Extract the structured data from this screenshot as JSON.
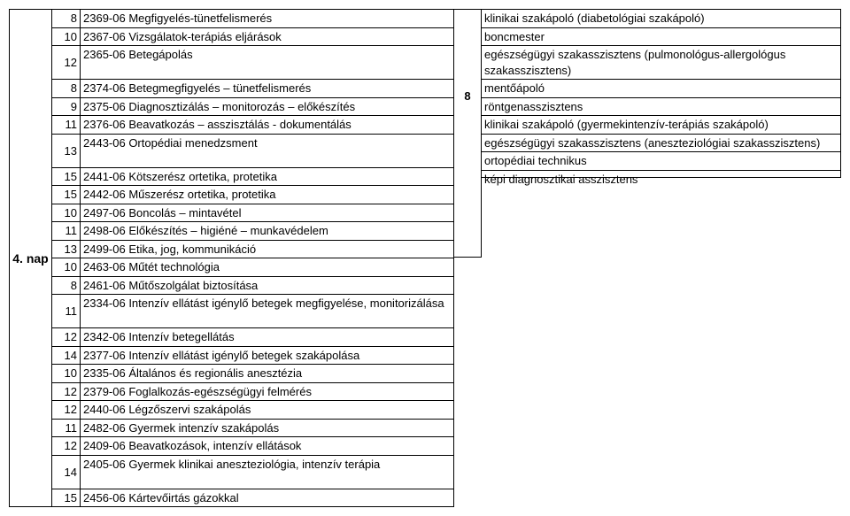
{
  "day_label": "4. nap",
  "mid_number": "8",
  "left_rows": [
    {
      "num": "8",
      "text": "2369-06 Megfigyelés-tünetfelismerés"
    },
    {
      "num": "10",
      "text": "2367-06 Vizsgálatok-terápiás eljárások"
    },
    {
      "num": "12",
      "text": "2365-06 Betegápolás"
    },
    {
      "num": "8",
      "text": "2374-06 Betegmegfigyelés – tünetfelismerés"
    },
    {
      "num": "9",
      "text": "2375-06 Diagnosztizálás – monitorozás – előkészítés"
    },
    {
      "num": "11",
      "text": "2376-06 Beavatkozás – asszisztálás - dokumentálás"
    },
    {
      "num": "13",
      "text": "2443-06 Ortopédiai menedzsment"
    },
    {
      "num": "15",
      "text": "2441-06 Kötszerész ortetika, protetika"
    },
    {
      "num": "15",
      "text": "2442-06 Műszerész ortetika, protetika"
    },
    {
      "num": "10",
      "text": "2497-06 Boncolás – mintavétel"
    },
    {
      "num": "11",
      "text": "2498-06 Előkészítés – higiéné – munkavédelem"
    },
    {
      "num": "13",
      "text": "2499-06 Etika, jog, kommunikáció"
    },
    {
      "num": "10",
      "text": "2463-06 Műtét technológia"
    },
    {
      "num": "8",
      "text": "2461-06 Műtőszolgálat biztosítása"
    },
    {
      "num": "11",
      "text": "2334-06 Intenzív ellátást igénylő betegek megfigyelése, monitorizálása"
    },
    {
      "num": "12",
      "text": "2342-06 Intenzív betegellátás"
    },
    {
      "num": "14",
      "text": "2377-06 Intenzív ellátást igénylő betegek szakápolása"
    },
    {
      "num": "10",
      "text": "2335-06 Általános és regionális anesztézia"
    },
    {
      "num": "12",
      "text": "2379-06 Foglalkozás-egészségügyi felmérés"
    },
    {
      "num": "12",
      "text": "2440-06 Légzőszervi szakápolás"
    },
    {
      "num": "11",
      "text": "2482-06 Gyermek intenzív szakápolás"
    },
    {
      "num": "12",
      "text": "2409-06 Beavatkozások, intenzív ellátások"
    },
    {
      "num": "14",
      "text": "2405-06 Gyermek klinikai aneszteziológia, intenzív terápia"
    },
    {
      "num": "15",
      "text": "2456-06 Kártevőirtás gázokkal"
    }
  ],
  "right_rows": [
    {
      "text": "klinikai szakápoló (diabetológiai szakápoló)",
      "h": 1
    },
    {
      "text": "boncmester",
      "h": 1
    },
    {
      "text": "egészségügyi szakasszisztens (pulmonológus-allergológus szakasszisztens)",
      "h": 2
    },
    {
      "text": "mentőápoló",
      "h": 1
    },
    {
      "text": "röntgenasszisztens",
      "h": 1
    },
    {
      "text": "klinikai szakápoló (gyermekintenzív-terápiás szakápoló)",
      "h": 1
    },
    {
      "text": "egészségügyi szakasszisztens (aneszteziológiai szakasszisztens)",
      "h": 1
    },
    {
      "text": "ortopédiai technikus",
      "h": 1
    },
    {
      "text": "képi diagnosztikai asszisztens",
      "h": 1
    }
  ],
  "row_heights": [
    1,
    1,
    2,
    1,
    1,
    1,
    2,
    1,
    1,
    1,
    1,
    1,
    1,
    1,
    2,
    1,
    1,
    1,
    1,
    1,
    1,
    1,
    2,
    1
  ],
  "colors": {
    "border": "#000000",
    "background": "#ffffff",
    "text": "#000000"
  },
  "font": {
    "family": "Arial",
    "size_pt": 10
  }
}
